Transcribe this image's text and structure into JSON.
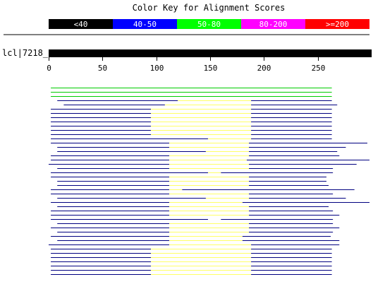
{
  "title": "Color Key for Alignment Scores",
  "legend": [
    {
      "label": "<40",
      "color": "#000000",
      "text_color": "#ffffff"
    },
    {
      "label": "40-50",
      "color": "#0000ff",
      "text_color": "#ffffff"
    },
    {
      "label": "50-80",
      "color": "#00ff00",
      "text_color": "#ffffff"
    },
    {
      "label": "80-200",
      "color": "#ff00ff",
      "text_color": "#ffffff"
    },
    {
      "label": ">=200",
      "color": "#ff0000",
      "text_color": "#ffffff"
    }
  ],
  "query": {
    "label": "lcl|7218_",
    "length": 300,
    "color": "#000000"
  },
  "axis": {
    "ticks": [
      0,
      50,
      100,
      150,
      200,
      250
    ],
    "max": 300
  },
  "colors": {
    "blue": "#000080",
    "yellow": "#ffff66",
    "green": "#00cc00"
  },
  "hits": [
    {
      "segments": [
        [
          2,
          263,
          "green"
        ]
      ]
    },
    {
      "segments": [
        [
          2,
          263,
          "green"
        ]
      ]
    },
    {
      "segments": [
        [
          2,
          263,
          "green"
        ]
      ]
    },
    {
      "segments": [
        [
          8,
          120,
          "blue"
        ],
        [
          120,
          188,
          "yellow"
        ],
        [
          188,
          263,
          "blue"
        ]
      ]
    },
    {
      "segments": [
        [
          14,
          108,
          "blue"
        ],
        [
          108,
          188,
          "yellow"
        ],
        [
          188,
          268,
          "blue"
        ]
      ]
    },
    {
      "segments": [
        [
          2,
          95,
          "blue"
        ],
        [
          95,
          188,
          "yellow"
        ],
        [
          188,
          263,
          "blue"
        ]
      ]
    },
    {
      "segments": [
        [
          2,
          95,
          "blue"
        ],
        [
          95,
          188,
          "yellow"
        ],
        [
          188,
          263,
          "blue"
        ]
      ]
    },
    {
      "segments": [
        [
          2,
          95,
          "blue"
        ],
        [
          95,
          188,
          "yellow"
        ],
        [
          188,
          263,
          "blue"
        ]
      ]
    },
    {
      "segments": [
        [
          2,
          95,
          "blue"
        ],
        [
          95,
          188,
          "yellow"
        ],
        [
          188,
          263,
          "blue"
        ]
      ]
    },
    {
      "segments": [
        [
          2,
          95,
          "blue"
        ],
        [
          95,
          188,
          "yellow"
        ],
        [
          188,
          263,
          "blue"
        ]
      ]
    },
    {
      "segments": [
        [
          2,
          95,
          "blue"
        ],
        [
          95,
          188,
          "yellow"
        ],
        [
          188,
          263,
          "blue"
        ]
      ]
    },
    {
      "segments": [
        [
          2,
          95,
          "blue"
        ],
        [
          95,
          188,
          "yellow"
        ],
        [
          188,
          263,
          "blue"
        ]
      ]
    },
    {
      "segments": [
        [
          2,
          148,
          "blue"
        ],
        [
          148,
          188,
          "yellow"
        ],
        [
          188,
          263,
          "blue"
        ]
      ]
    },
    {
      "segments": [
        [
          2,
          112,
          "blue"
        ],
        [
          112,
          186,
          "yellow"
        ],
        [
          186,
          296,
          "blue"
        ]
      ]
    },
    {
      "segments": [
        [
          8,
          112,
          "blue"
        ],
        [
          112,
          186,
          "yellow"
        ],
        [
          186,
          276,
          "blue"
        ]
      ]
    },
    {
      "segments": [
        [
          8,
          146,
          "blue"
        ],
        [
          146,
          186,
          "yellow"
        ],
        [
          186,
          268,
          "blue"
        ]
      ]
    },
    {
      "segments": [
        [
          2,
          112,
          "blue"
        ],
        [
          112,
          186,
          "yellow"
        ],
        [
          186,
          270,
          "blue"
        ]
      ]
    },
    {
      "segments": [
        [
          2,
          112,
          "blue"
        ],
        [
          112,
          184,
          "yellow"
        ],
        [
          184,
          298,
          "blue"
        ]
      ]
    },
    {
      "segments": [
        [
          0,
          112,
          "blue"
        ],
        [
          112,
          186,
          "yellow"
        ],
        [
          186,
          286,
          "blue"
        ]
      ]
    },
    {
      "segments": [
        [
          8,
          112,
          "blue"
        ],
        [
          112,
          186,
          "yellow"
        ],
        [
          186,
          264,
          "blue"
        ]
      ]
    },
    {
      "segments": [
        [
          2,
          148,
          "blue"
        ],
        [
          148,
          160,
          "yellow"
        ],
        [
          160,
          264,
          "blue"
        ]
      ]
    },
    {
      "segments": [
        [
          2,
          112,
          "blue"
        ],
        [
          112,
          186,
          "yellow"
        ],
        [
          186,
          258,
          "blue"
        ]
      ]
    },
    {
      "segments": [
        [
          8,
          112,
          "blue"
        ],
        [
          112,
          186,
          "yellow"
        ],
        [
          186,
          258,
          "blue"
        ]
      ]
    },
    {
      "segments": [
        [
          8,
          112,
          "blue"
        ],
        [
          112,
          186,
          "yellow"
        ],
        [
          186,
          260,
          "blue"
        ]
      ]
    },
    {
      "segments": [
        [
          2,
          112,
          "blue"
        ],
        [
          112,
          124,
          "yellow"
        ],
        [
          124,
          284,
          "blue"
        ]
      ]
    },
    {
      "segments": [
        [
          2,
          112,
          "blue"
        ],
        [
          112,
          186,
          "yellow"
        ],
        [
          186,
          264,
          "blue"
        ]
      ]
    },
    {
      "segments": [
        [
          8,
          146,
          "blue"
        ],
        [
          146,
          186,
          "yellow"
        ],
        [
          186,
          276,
          "blue"
        ]
      ]
    },
    {
      "segments": [
        [
          2,
          112,
          "blue"
        ],
        [
          112,
          180,
          "yellow"
        ],
        [
          180,
          298,
          "blue"
        ]
      ]
    },
    {
      "segments": [
        [
          8,
          112,
          "blue"
        ],
        [
          112,
          186,
          "yellow"
        ],
        [
          186,
          260,
          "blue"
        ]
      ]
    },
    {
      "segments": [
        [
          2,
          112,
          "blue"
        ],
        [
          112,
          186,
          "yellow"
        ],
        [
          186,
          264,
          "blue"
        ]
      ]
    },
    {
      "segments": [
        [
          2,
          112,
          "blue"
        ],
        [
          112,
          186,
          "yellow"
        ],
        [
          186,
          270,
          "blue"
        ]
      ]
    },
    {
      "segments": [
        [
          2,
          148,
          "blue"
        ],
        [
          160,
          264,
          "blue"
        ]
      ]
    },
    {
      "segments": [
        [
          8,
          112,
          "blue"
        ],
        [
          112,
          186,
          "yellow"
        ],
        [
          186,
          264,
          "blue"
        ]
      ]
    },
    {
      "segments": [
        [
          2,
          112,
          "blue"
        ],
        [
          112,
          186,
          "yellow"
        ],
        [
          186,
          270,
          "blue"
        ]
      ]
    },
    {
      "segments": [
        [
          8,
          112,
          "blue"
        ],
        [
          112,
          186,
          "yellow"
        ],
        [
          186,
          264,
          "blue"
        ]
      ]
    },
    {
      "segments": [
        [
          2,
          112,
          "blue"
        ],
        [
          112,
          180,
          "yellow"
        ],
        [
          180,
          262,
          "blue"
        ]
      ]
    },
    {
      "segments": [
        [
          8,
          112,
          "blue"
        ],
        [
          112,
          180,
          "yellow"
        ],
        [
          180,
          270,
          "blue"
        ]
      ]
    },
    {
      "segments": [
        [
          0,
          112,
          "blue"
        ],
        [
          112,
          188,
          "yellow"
        ],
        [
          188,
          270,
          "blue"
        ]
      ]
    },
    {
      "segments": [
        [
          2,
          95,
          "blue"
        ],
        [
          95,
          188,
          "yellow"
        ],
        [
          188,
          263,
          "blue"
        ]
      ]
    },
    {
      "segments": [
        [
          2,
          95,
          "blue"
        ],
        [
          95,
          188,
          "yellow"
        ],
        [
          188,
          263,
          "blue"
        ]
      ]
    },
    {
      "segments": [
        [
          2,
          95,
          "blue"
        ],
        [
          95,
          188,
          "yellow"
        ],
        [
          188,
          263,
          "blue"
        ]
      ]
    },
    {
      "segments": [
        [
          2,
          95,
          "blue"
        ],
        [
          95,
          188,
          "yellow"
        ],
        [
          188,
          263,
          "blue"
        ]
      ]
    },
    {
      "segments": [
        [
          2,
          95,
          "blue"
        ],
        [
          95,
          188,
          "yellow"
        ],
        [
          188,
          263,
          "blue"
        ]
      ]
    },
    {
      "segments": [
        [
          2,
          95,
          "blue"
        ],
        [
          95,
          188,
          "yellow"
        ],
        [
          188,
          263,
          "blue"
        ]
      ]
    },
    {
      "segments": [
        [
          2,
          95,
          "blue"
        ],
        [
          95,
          188,
          "yellow"
        ],
        [
          188,
          263,
          "blue"
        ]
      ]
    }
  ]
}
